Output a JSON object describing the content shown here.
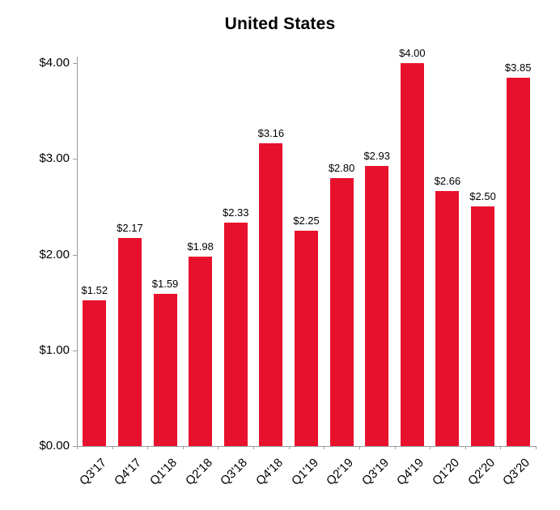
{
  "chart_data": {
    "type": "bar",
    "title": "United States",
    "categories": [
      "Q3'17",
      "Q4'17",
      "Q1'18",
      "Q2'18",
      "Q3'18",
      "Q4'18",
      "Q1'19",
      "Q2'19",
      "Q3'19",
      "Q4'19",
      "Q1'20",
      "Q2'20",
      "Q3'20"
    ],
    "values": [
      1.52,
      2.17,
      1.59,
      1.98,
      2.33,
      3.16,
      2.25,
      2.8,
      2.93,
      4.0,
      2.66,
      2.5,
      3.85
    ],
    "data_labels": [
      "$1.52",
      "$2.17",
      "$1.59",
      "$1.98",
      "$2.33",
      "$3.16",
      "$2.25",
      "$2.80",
      "$2.93",
      "$4.00",
      "$2.66",
      "$2.50",
      "$3.85"
    ],
    "y_ticks": [
      "$0.00",
      "$1.00",
      "$2.00",
      "$3.00",
      "$4.00"
    ],
    "ylim": [
      0,
      4.0
    ],
    "xlabel": "",
    "ylabel": "",
    "grid": false,
    "legend": "none",
    "bar_color": "#e8112d",
    "axis_color": "#9b9b9b",
    "text_color": "#000000"
  }
}
